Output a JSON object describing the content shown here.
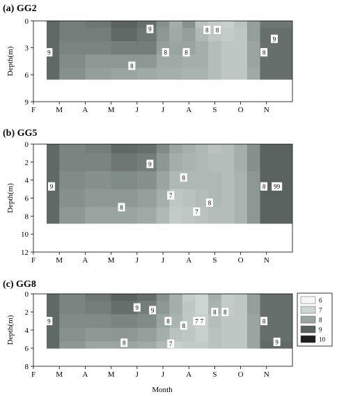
{
  "chart_data": {
    "type": "heatmap",
    "xlabel": "Month",
    "ylabel": "Depth(m)",
    "x_tick_labels": [
      "F",
      "M",
      "A",
      "M",
      "J",
      "J",
      "A",
      "S",
      "O",
      "N"
    ],
    "legend": {
      "placement": "right",
      "entries": [
        {
          "label": "6",
          "color": "#f6f8f7"
        },
        {
          "label": "7",
          "color": "#cdd5d2"
        },
        {
          "label": "8",
          "color": "#9aa5a1"
        },
        {
          "label": "9",
          "color": "#59625f"
        },
        {
          "label": "10",
          "color": "#1c1f1e"
        }
      ]
    },
    "panels": [
      {
        "title": "(a) GG2",
        "yticks": [
          "0",
          "3",
          "6",
          "9"
        ],
        "ylim": [
          0,
          9
        ],
        "max_depth": 6.5,
        "x": [
          1.5,
          2.5,
          3.5,
          4.5,
          5.5,
          6.0,
          6.5,
          7.0,
          7.5,
          8.0,
          8.5,
          9.0,
          9.5,
          10.0
        ],
        "depths": [
          0,
          1.5,
          3,
          4.5,
          6
        ],
        "values": [
          [
            8.9,
            8.6,
            8.7,
            9.0,
            8.8,
            8.3,
            7.8,
            8.3,
            7.4,
            7.2,
            7.1,
            7.4,
            8.1,
            8.7
          ],
          [
            8.9,
            8.6,
            8.6,
            8.9,
            8.7,
            8.2,
            7.9,
            8.1,
            7.6,
            7.3,
            7.2,
            7.3,
            8.1,
            8.8
          ],
          [
            8.9,
            8.5,
            8.5,
            8.6,
            8.6,
            8.1,
            8.0,
            8.0,
            7.8,
            7.5,
            7.3,
            7.3,
            8.0,
            8.8
          ],
          [
            8.9,
            8.4,
            8.2,
            8.2,
            8.2,
            7.9,
            7.9,
            7.8,
            7.8,
            7.5,
            7.3,
            7.3,
            8.0,
            8.8
          ],
          [
            8.9,
            8.3,
            8.1,
            8.0,
            7.9,
            7.8,
            7.8,
            7.7,
            7.7,
            7.5,
            7.3,
            7.3,
            7.9,
            8.8
          ]
        ],
        "contour_labels": [
          {
            "text": "9",
            "x": 1.6,
            "y": 3.5
          },
          {
            "text": "9",
            "x": 5.5,
            "y": 0.9
          },
          {
            "text": "8",
            "x": 4.8,
            "y": 5.0
          },
          {
            "text": "8",
            "x": 6.1,
            "y": 3.5
          },
          {
            "text": "8",
            "x": 6.9,
            "y": 3.5
          },
          {
            "text": "8",
            "x": 7.7,
            "y": 1.0
          },
          {
            "text": "8",
            "x": 8.1,
            "y": 1.0
          },
          {
            "text": "8",
            "x": 9.9,
            "y": 3.5
          },
          {
            "text": "9",
            "x": 10.3,
            "y": 2.0
          }
        ]
      },
      {
        "title": "(b) GG5",
        "yticks": [
          "0",
          "2",
          "4",
          "6",
          "8",
          "10",
          "12"
        ],
        "ylim": [
          0,
          12
        ],
        "max_depth": 8.8,
        "x": [
          1.5,
          2.5,
          3.5,
          4.5,
          5.5,
          6.0,
          6.5,
          7.0,
          7.5,
          8.0,
          8.5,
          9.0,
          9.5,
          10.0
        ],
        "depths": [
          0,
          2,
          4,
          6,
          8
        ],
        "values": [
          [
            8.9,
            8.5,
            8.6,
            8.9,
            8.8,
            8.4,
            8.0,
            7.8,
            7.6,
            7.4,
            7.5,
            7.8,
            8.3,
            9.0
          ],
          [
            8.9,
            8.5,
            8.5,
            8.7,
            8.6,
            8.2,
            7.8,
            7.7,
            7.6,
            7.5,
            7.5,
            7.8,
            8.3,
            9.0
          ],
          [
            8.9,
            8.4,
            8.3,
            8.4,
            8.3,
            8.0,
            7.6,
            7.6,
            7.6,
            7.6,
            7.5,
            7.7,
            8.2,
            9.0
          ],
          [
            8.9,
            8.3,
            8.2,
            8.2,
            8.1,
            7.8,
            7.3,
            7.4,
            7.5,
            7.6,
            7.5,
            7.7,
            8.2,
            9.0
          ],
          [
            8.9,
            8.2,
            8.0,
            8.0,
            7.9,
            7.6,
            7.2,
            7.3,
            7.4,
            7.5,
            7.5,
            7.7,
            8.2,
            9.0
          ]
        ],
        "contour_labels": [
          {
            "text": "9",
            "x": 1.7,
            "y": 4.7
          },
          {
            "text": "9",
            "x": 5.5,
            "y": 2.2
          },
          {
            "text": "8",
            "x": 4.4,
            "y": 7.0
          },
          {
            "text": "7",
            "x": 6.3,
            "y": 5.7
          },
          {
            "text": "8",
            "x": 6.8,
            "y": 3.7
          },
          {
            "text": "7",
            "x": 7.3,
            "y": 7.5
          },
          {
            "text": "8",
            "x": 7.8,
            "y": 6.5
          },
          {
            "text": "8",
            "x": 9.9,
            "y": 4.7
          },
          {
            "text": "99",
            "x": 10.4,
            "y": 4.7
          }
        ]
      },
      {
        "title": "(c) GG8",
        "yticks": [
          "0",
          "2",
          "4",
          "6",
          "8"
        ],
        "ylim": [
          0,
          8
        ],
        "max_depth": 6.0,
        "x": [
          1.5,
          2.5,
          3.5,
          4.5,
          5.5,
          6.0,
          6.5,
          7.0,
          7.5,
          8.0,
          8.5,
          9.0,
          9.5,
          10.0
        ],
        "depths": [
          0,
          1.5,
          3,
          4.5,
          6
        ],
        "values": [
          [
            8.9,
            8.5,
            8.7,
            9.0,
            8.8,
            8.3,
            7.8,
            7.2,
            7.0,
            7.8,
            7.2,
            7.3,
            8.1,
            8.8
          ],
          [
            8.9,
            8.5,
            8.6,
            8.8,
            8.6,
            8.2,
            7.8,
            7.3,
            7.0,
            7.7,
            7.2,
            7.3,
            8.1,
            8.8
          ],
          [
            8.9,
            8.4,
            8.4,
            8.5,
            8.4,
            8.0,
            7.7,
            7.3,
            7.1,
            7.5,
            7.3,
            7.3,
            8.0,
            8.8
          ],
          [
            8.9,
            8.3,
            8.2,
            8.2,
            8.1,
            7.8,
            7.4,
            7.3,
            7.1,
            7.4,
            7.3,
            7.3,
            8.0,
            8.8
          ],
          [
            8.9,
            8.2,
            8.0,
            8.0,
            7.9,
            7.6,
            7.1,
            7.2,
            7.2,
            7.4,
            7.3,
            7.3,
            8.0,
            8.9
          ]
        ],
        "contour_labels": [
          {
            "text": "9",
            "x": 1.6,
            "y": 3.0
          },
          {
            "text": "9",
            "x": 5.0,
            "y": 1.5
          },
          {
            "text": "9",
            "x": 5.6,
            "y": 1.8
          },
          {
            "text": "8",
            "x": 4.5,
            "y": 5.4
          },
          {
            "text": "8",
            "x": 6.2,
            "y": 3.0
          },
          {
            "text": "7",
            "x": 6.3,
            "y": 5.5
          },
          {
            "text": "8",
            "x": 6.8,
            "y": 3.5
          },
          {
            "text": "7",
            "x": 7.3,
            "y": 3.0
          },
          {
            "text": "7",
            "x": 7.5,
            "y": 3.0
          },
          {
            "text": "8",
            "x": 8.0,
            "y": 2.0
          },
          {
            "text": "8",
            "x": 8.4,
            "y": 2.0
          },
          {
            "text": "8",
            "x": 9.9,
            "y": 3.0
          },
          {
            "text": "9",
            "x": 10.4,
            "y": 5.3
          }
        ]
      }
    ]
  }
}
